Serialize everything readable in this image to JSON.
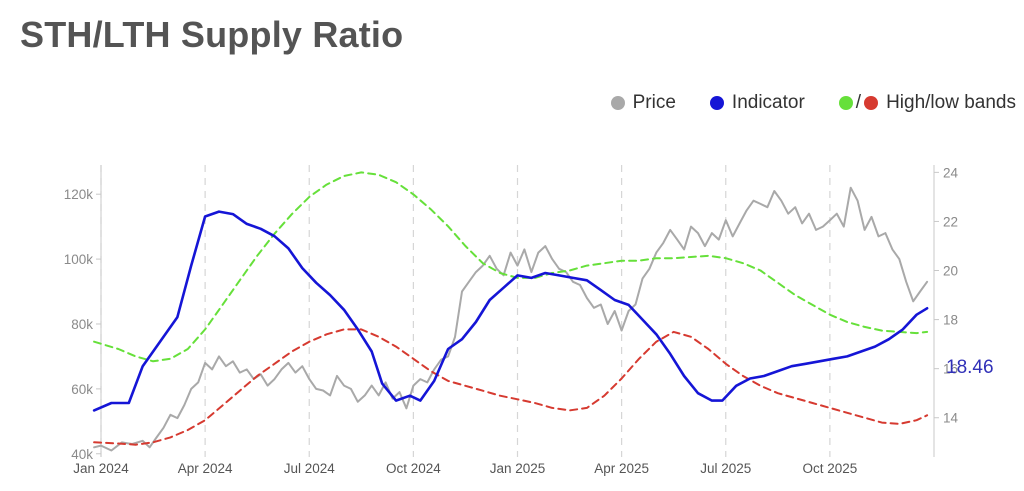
{
  "title": "STH/LTH Supply Ratio",
  "legend": {
    "price": "Price",
    "indicator": "Indicator",
    "bands_sep": "/",
    "bands": "High/low bands"
  },
  "colors": {
    "price": "#a9a9a9",
    "indicator": "#1515d6",
    "high_band": "#66e03a",
    "low_band": "#d63a30",
    "grid": "#d6d6d6",
    "axis_text": "#8a8a8a",
    "current_value": "#3030b8"
  },
  "current_value_label": "18.46",
  "chart_data": {
    "type": "line",
    "title": "STH/LTH Supply Ratio",
    "x_range": [
      0,
      24
    ],
    "x_unit": "months since Jan 2024",
    "x_ticks": [
      {
        "t": 0,
        "label": "Jan 2024"
      },
      {
        "t": 3,
        "label": "Apr 2024"
      },
      {
        "t": 6,
        "label": "Jul 2024"
      },
      {
        "t": 9,
        "label": "Oct 2024"
      },
      {
        "t": 12,
        "label": "Jan 2025"
      },
      {
        "t": 15,
        "label": "Apr 2025"
      },
      {
        "t": 18,
        "label": "Jul 2025"
      },
      {
        "t": 21,
        "label": "Oct 2025"
      }
    ],
    "y_left": {
      "range": [
        39000,
        129000
      ],
      "ticks": [
        40000,
        60000,
        80000,
        100000,
        120000
      ],
      "tick_labels": [
        "40k",
        "60k",
        "80k",
        "100k",
        "120k"
      ]
    },
    "y_right": {
      "range": [
        12.4,
        24.3
      ],
      "ticks": [
        14,
        16,
        18,
        20,
        22,
        24
      ],
      "tick_labels": [
        "14",
        "16",
        "18",
        "20",
        "22",
        "24"
      ]
    },
    "series": [
      {
        "name": "Price",
        "axis": "left",
        "style": "solid",
        "x": [
          -0.2,
          0,
          0.3,
          0.6,
          0.9,
          1.2,
          1.4,
          1.6,
          1.8,
          2.0,
          2.2,
          2.4,
          2.6,
          2.8,
          3.0,
          3.2,
          3.4,
          3.6,
          3.8,
          4.0,
          4.2,
          4.4,
          4.6,
          4.8,
          5.0,
          5.2,
          5.4,
          5.6,
          5.8,
          6.0,
          6.2,
          6.4,
          6.6,
          6.8,
          7.0,
          7.2,
          7.4,
          7.6,
          7.8,
          8.0,
          8.2,
          8.4,
          8.6,
          8.8,
          9.0,
          9.2,
          9.4,
          9.6,
          9.8,
          10.0,
          10.2,
          10.4,
          10.6,
          10.8,
          11.0,
          11.2,
          11.4,
          11.6,
          11.8,
          12.0,
          12.2,
          12.4,
          12.6,
          12.8,
          13.0,
          13.2,
          13.4,
          13.6,
          13.8,
          14.0,
          14.2,
          14.4,
          14.6,
          14.8,
          15.0,
          15.2,
          15.4,
          15.6,
          15.8,
          16.0,
          16.2,
          16.4,
          16.6,
          16.8,
          17.0,
          17.2,
          17.4,
          17.6,
          17.8,
          18.0,
          18.2,
          18.4,
          18.6,
          18.8,
          19.0,
          19.2,
          19.4,
          19.6,
          19.8,
          20.0,
          20.2,
          20.4,
          20.6,
          20.8,
          21.0,
          21.2,
          21.4,
          21.6,
          21.8,
          22.0,
          22.2,
          22.4,
          22.6,
          22.8,
          23.0,
          23.2,
          23.4,
          23.6,
          23.8
        ],
        "values": [
          42000,
          42500,
          41000,
          43500,
          43000,
          44000,
          42000,
          45000,
          48000,
          52000,
          51000,
          55000,
          60000,
          62000,
          68000,
          66000,
          70000,
          67000,
          68500,
          65000,
          66000,
          63000,
          64500,
          61000,
          63000,
          66000,
          68000,
          65000,
          67000,
          63000,
          60000,
          59500,
          58000,
          64000,
          61000,
          60000,
          56000,
          58000,
          61000,
          58000,
          62000,
          57000,
          59000,
          54000,
          61000,
          63000,
          62000,
          66000,
          69000,
          70000,
          76000,
          90000,
          93000,
          96000,
          98000,
          101000,
          97000,
          95000,
          102000,
          98000,
          103000,
          96000,
          102000,
          104000,
          100000,
          97000,
          96000,
          93000,
          92000,
          88000,
          85000,
          86000,
          80000,
          84000,
          78000,
          84000,
          86000,
          94000,
          97000,
          102000,
          105000,
          109000,
          106000,
          103000,
          110000,
          108000,
          104000,
          108000,
          106000,
          112000,
          107000,
          111000,
          115000,
          118000,
          117000,
          116000,
          121000,
          118000,
          114000,
          116000,
          111000,
          114000,
          109000,
          110000,
          112000,
          114000,
          110000,
          122000,
          118000,
          109000,
          113000,
          107000,
          108000,
          103000,
          100000,
          93000,
          87000,
          90000,
          93000
        ]
      },
      {
        "name": "Indicator",
        "axis": "right",
        "style": "solid",
        "x": [
          -0.2,
          0.3,
          0.8,
          1.2,
          1.7,
          2.2,
          2.6,
          3.0,
          3.4,
          3.8,
          4.2,
          4.6,
          5.0,
          5.4,
          5.8,
          6.2,
          6.6,
          7.0,
          7.4,
          7.8,
          8.1,
          8.5,
          8.9,
          9.2,
          9.6,
          10.0,
          10.4,
          10.8,
          11.2,
          11.6,
          12.0,
          12.4,
          12.8,
          13.2,
          13.6,
          14.0,
          14.4,
          14.8,
          15.2,
          15.6,
          16.0,
          16.4,
          16.8,
          17.2,
          17.6,
          17.9,
          18.3,
          18.7,
          19.1,
          19.5,
          19.9,
          20.3,
          20.7,
          21.1,
          21.5,
          21.9,
          22.3,
          22.7,
          23.1,
          23.5,
          23.8
        ],
        "values": [
          14.3,
          14.6,
          14.6,
          16.1,
          17.1,
          18.1,
          20.2,
          22.2,
          22.4,
          22.3,
          21.9,
          21.7,
          21.4,
          20.9,
          20.1,
          19.5,
          19.0,
          18.4,
          17.6,
          16.7,
          15.4,
          14.7,
          14.9,
          14.7,
          15.5,
          16.8,
          17.2,
          17.9,
          18.8,
          19.3,
          19.8,
          19.7,
          19.9,
          19.8,
          19.7,
          19.6,
          19.2,
          18.8,
          18.6,
          18.0,
          17.4,
          16.6,
          15.7,
          15.0,
          14.7,
          14.7,
          15.3,
          15.6,
          15.7,
          15.9,
          16.1,
          16.2,
          16.3,
          16.4,
          16.5,
          16.7,
          16.9,
          17.2,
          17.6,
          18.2,
          18.46
        ]
      },
      {
        "name": "High band",
        "axis": "right",
        "style": "dashed",
        "x": [
          -0.2,
          0.5,
          1.0,
          1.5,
          2.0,
          2.5,
          3.0,
          3.5,
          4.0,
          4.5,
          5.0,
          5.5,
          6.0,
          6.5,
          7.0,
          7.5,
          8.0,
          8.5,
          9.0,
          9.5,
          10.0,
          10.5,
          11.0,
          11.5,
          12.0,
          12.5,
          13.0,
          13.5,
          14.0,
          14.5,
          15.0,
          15.5,
          16.0,
          16.5,
          17.0,
          17.5,
          18.0,
          18.5,
          19.0,
          19.5,
          20.0,
          20.5,
          21.0,
          21.5,
          22.0,
          22.5,
          23.0,
          23.5,
          23.8
        ],
        "values": [
          17.1,
          16.8,
          16.5,
          16.3,
          16.4,
          16.8,
          17.6,
          18.6,
          19.6,
          20.6,
          21.5,
          22.3,
          23.0,
          23.5,
          23.85,
          24.0,
          23.9,
          23.6,
          23.1,
          22.5,
          21.8,
          21.0,
          20.3,
          19.9,
          19.7,
          19.7,
          19.9,
          20.0,
          20.2,
          20.3,
          20.4,
          20.4,
          20.5,
          20.5,
          20.55,
          20.6,
          20.5,
          20.3,
          20.0,
          19.5,
          19.0,
          18.6,
          18.2,
          17.9,
          17.7,
          17.55,
          17.5,
          17.45,
          17.5
        ]
      },
      {
        "name": "Low band",
        "axis": "right",
        "style": "dashed",
        "x": [
          -0.2,
          0.5,
          1.0,
          1.5,
          2.0,
          2.5,
          3.0,
          3.5,
          4.0,
          4.5,
          5.0,
          5.5,
          6.0,
          6.5,
          7.0,
          7.5,
          8.0,
          8.5,
          9.0,
          9.5,
          10.0,
          10.5,
          11.0,
          11.5,
          12.0,
          12.5,
          13.0,
          13.5,
          14.0,
          14.5,
          15.0,
          15.5,
          16.0,
          16.5,
          17.0,
          17.5,
          18.0,
          18.5,
          19.0,
          19.5,
          20.0,
          20.5,
          21.0,
          21.5,
          22.0,
          22.5,
          23.0,
          23.5,
          23.8
        ],
        "values": [
          13.0,
          12.95,
          12.9,
          13.0,
          13.2,
          13.5,
          13.9,
          14.5,
          15.1,
          15.7,
          16.2,
          16.7,
          17.1,
          17.4,
          17.6,
          17.6,
          17.3,
          16.9,
          16.4,
          15.9,
          15.5,
          15.3,
          15.1,
          14.9,
          14.75,
          14.6,
          14.4,
          14.3,
          14.4,
          14.9,
          15.6,
          16.4,
          17.1,
          17.5,
          17.3,
          16.8,
          16.2,
          15.7,
          15.3,
          15.0,
          14.8,
          14.6,
          14.4,
          14.2,
          14.0,
          13.8,
          13.75,
          13.9,
          14.1
        ]
      }
    ]
  }
}
